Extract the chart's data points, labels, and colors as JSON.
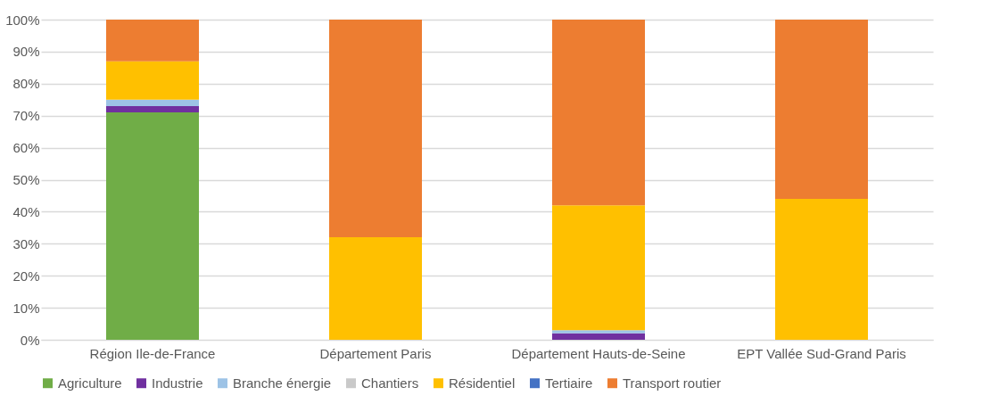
{
  "chart_data": {
    "type": "bar",
    "stacked": true,
    "categories": [
      "Région Ile-de-France",
      "Département Paris",
      "Département Hauts-de-Seine",
      "EPT Vallée Sud-Grand Paris"
    ],
    "series": [
      {
        "name": "Agriculture",
        "color": "#70ad47",
        "values": [
          71,
          0,
          0,
          0
        ]
      },
      {
        "name": "Industrie",
        "color": "#7030a0",
        "values": [
          2,
          0,
          2,
          0
        ]
      },
      {
        "name": "Branche énergie",
        "color": "#9dc3e6",
        "values": [
          2,
          0,
          1,
          0
        ]
      },
      {
        "name": "Chantiers",
        "color": "#c9c9c9",
        "values": [
          0,
          0,
          0,
          0
        ]
      },
      {
        "name": "Résidentiel",
        "color": "#ffc000",
        "values": [
          12,
          32,
          39,
          44
        ]
      },
      {
        "name": "Tertiaire",
        "color": "#4472c4",
        "values": [
          0,
          0,
          0,
          0
        ]
      },
      {
        "name": "Transport routier",
        "color": "#ed7d31",
        "values": [
          13,
          68,
          58,
          56
        ]
      }
    ],
    "ylim": [
      0,
      100
    ],
    "yticks": [
      {
        "value": 0,
        "label": "0%"
      },
      {
        "value": 10,
        "label": "10%"
      },
      {
        "value": 20,
        "label": "20%"
      },
      {
        "value": 30,
        "label": "30%"
      },
      {
        "value": 40,
        "label": "40%"
      },
      {
        "value": 50,
        "label": "50%"
      },
      {
        "value": 60,
        "label": "60%"
      },
      {
        "value": 70,
        "label": "70%"
      },
      {
        "value": 80,
        "label": "80%"
      },
      {
        "value": 90,
        "label": "90%"
      },
      {
        "value": 100,
        "label": "100%"
      }
    ],
    "grid": "y",
    "legend": "bottom"
  }
}
